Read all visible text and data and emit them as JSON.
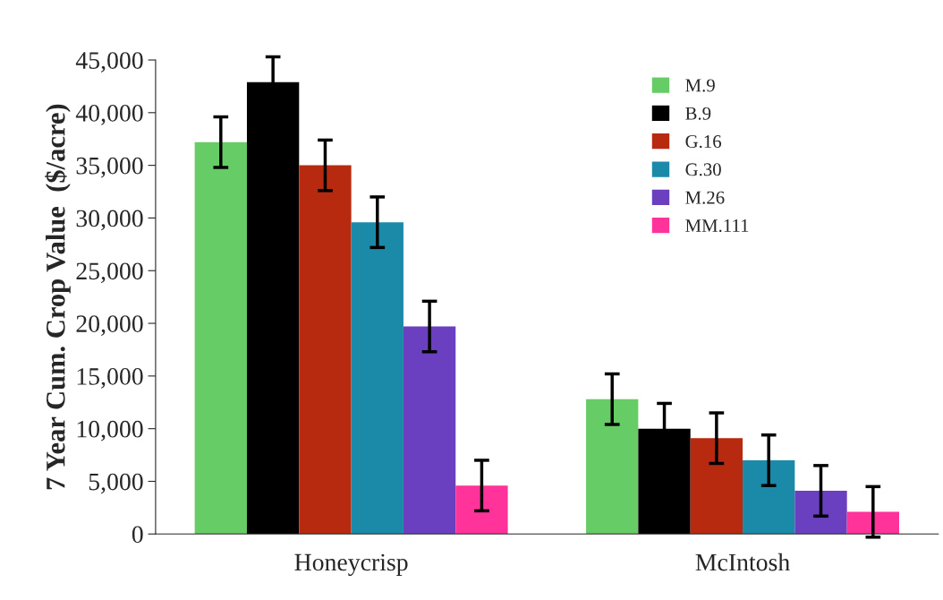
{
  "chart_data": {
    "type": "bar",
    "ylabel": "7 Year Cum. Crop Value  ($/acre)",
    "categories": [
      "Honeycrisp",
      "McIntosh"
    ],
    "series": [
      {
        "name": "M.9",
        "color": "#66cc66",
        "values": [
          37200,
          12800
        ],
        "errors": [
          2400,
          2400
        ]
      },
      {
        "name": "B.9",
        "color": "#000000",
        "values": [
          42900,
          10000
        ],
        "errors": [
          2400,
          2400
        ]
      },
      {
        "name": "G.16",
        "color": "#b82a10",
        "values": [
          35000,
          9100
        ],
        "errors": [
          2400,
          2400
        ]
      },
      {
        "name": "G.30",
        "color": "#1a8aa8",
        "values": [
          29600,
          7000
        ],
        "errors": [
          2400,
          2400
        ]
      },
      {
        "name": "M.26",
        "color": "#6a3fc0",
        "values": [
          19700,
          4100
        ],
        "errors": [
          2400,
          2400
        ]
      },
      {
        "name": "MM.111",
        "color": "#ff3399",
        "values": [
          4600,
          2100
        ],
        "errors": [
          2400,
          2400
        ]
      }
    ],
    "ylim": [
      0,
      45000
    ],
    "yticks": [
      0,
      {
        "value": 5000,
        "label": "5,000"
      },
      {
        "value": 10000,
        "label": "10,000"
      },
      {
        "value": 15000,
        "label": "15,000"
      },
      {
        "value": 20000,
        "label": "20,000"
      },
      {
        "value": 25000,
        "label": "25,000"
      },
      {
        "value": 30000,
        "label": "30,000"
      },
      {
        "value": 35000,
        "label": "35,000"
      },
      {
        "value": 40000,
        "label": "40,000"
      },
      {
        "value": 45000,
        "label": "45,000"
      }
    ],
    "grid": false,
    "legend": "top right"
  }
}
